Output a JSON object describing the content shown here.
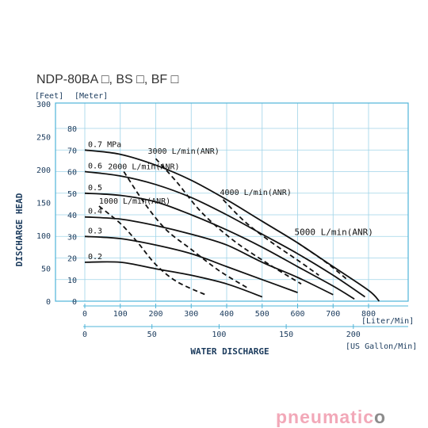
{
  "chart_data": {
    "type": "line",
    "title": "NDP-80BA □, BS □, BF □",
    "xlabel": "WATER   DISCHARGE",
    "ylabel": "DISCHARGE   HEAD",
    "x_unit_primary": "[Liter/Min]",
    "x_unit_secondary": "[US Gallon/Min]",
    "y_unit_feet": "[Feet]",
    "y_unit_meter": "[Meter]",
    "xlim_lpm": [
      0,
      800
    ],
    "ylim_m": [
      0,
      80
    ],
    "grid": true,
    "x_ticks_lpm": [
      "0",
      "100",
      "200",
      "300",
      "400",
      "500",
      "600",
      "700",
      "800"
    ],
    "x_ticks_gpm": [
      "0",
      "50",
      "100",
      "150",
      "200"
    ],
    "y_ticks_meter": [
      "0",
      "10",
      "20",
      "30",
      "40",
      "50",
      "60",
      "70",
      "80"
    ],
    "y_ticks_feet": [
      "0",
      "50",
      "100",
      "150",
      "200",
      "250",
      "300"
    ],
    "pressure_curves": [
      {
        "label": "0.7 MPa",
        "points": [
          [
            0,
            70
          ],
          [
            100,
            68
          ],
          [
            200,
            63
          ],
          [
            300,
            56
          ],
          [
            400,
            47
          ],
          [
            500,
            37
          ],
          [
            600,
            27
          ],
          [
            700,
            16
          ],
          [
            800,
            5
          ],
          [
            830,
            0
          ]
        ]
      },
      {
        "label": "0.6",
        "points": [
          [
            0,
            60
          ],
          [
            100,
            58
          ],
          [
            200,
            54
          ],
          [
            300,
            48
          ],
          [
            400,
            40
          ],
          [
            500,
            31
          ],
          [
            600,
            22
          ],
          [
            700,
            12
          ],
          [
            790,
            2
          ]
        ]
      },
      {
        "label": "0.5",
        "points": [
          [
            0,
            50
          ],
          [
            100,
            49
          ],
          [
            200,
            46
          ],
          [
            300,
            40
          ],
          [
            400,
            33
          ],
          [
            500,
            25
          ],
          [
            600,
            16
          ],
          [
            700,
            7
          ],
          [
            760,
            1
          ]
        ]
      },
      {
        "label": "0.4",
        "points": [
          [
            0,
            39
          ],
          [
            100,
            38
          ],
          [
            200,
            35
          ],
          [
            300,
            31
          ],
          [
            400,
            26
          ],
          [
            500,
            18
          ],
          [
            600,
            11
          ],
          [
            700,
            3
          ]
        ]
      },
      {
        "label": "0.3",
        "points": [
          [
            0,
            30
          ],
          [
            100,
            29
          ],
          [
            200,
            26
          ],
          [
            300,
            22
          ],
          [
            400,
            16
          ],
          [
            500,
            10
          ],
          [
            600,
            4
          ]
        ]
      },
      {
        "label": "0.2",
        "points": [
          [
            0,
            18
          ],
          [
            100,
            18
          ],
          [
            200,
            15
          ],
          [
            300,
            12
          ],
          [
            400,
            8
          ],
          [
            500,
            2
          ]
        ]
      }
    ],
    "air_curves": [
      {
        "label": "1000 L/min(ANR)",
        "points": [
          [
            40,
            44
          ],
          [
            100,
            36
          ],
          [
            150,
            27
          ],
          [
            200,
            17
          ],
          [
            260,
            9
          ],
          [
            340,
            3
          ]
        ]
      },
      {
        "label": "2000 L/min(ANR)",
        "points": [
          [
            110,
            60
          ],
          [
            170,
            45
          ],
          [
            230,
            33
          ],
          [
            300,
            24
          ],
          [
            380,
            14
          ],
          [
            460,
            6
          ]
        ]
      },
      {
        "label": "3000 L/min(ANR)",
        "points": [
          [
            200,
            66
          ],
          [
            260,
            55
          ],
          [
            330,
            41
          ],
          [
            420,
            28
          ],
          [
            520,
            17
          ],
          [
            610,
            8
          ]
        ]
      },
      {
        "label": "4000 L/min(ANR)",
        "points": [
          [
            390,
            47
          ],
          [
            450,
            37
          ],
          [
            520,
            28
          ],
          [
            600,
            19
          ],
          [
            660,
            12
          ]
        ]
      },
      {
        "label": "5000 L/min(ANR)",
        "points": [
          [
            600,
            27
          ],
          [
            680,
            18
          ],
          [
            740,
            10
          ]
        ]
      }
    ]
  },
  "logo": {
    "part1": "pneumati",
    "part2": "c",
    "part3": "o",
    "color1": "#f2a8b8",
    "color2": "#8c8c8c"
  }
}
